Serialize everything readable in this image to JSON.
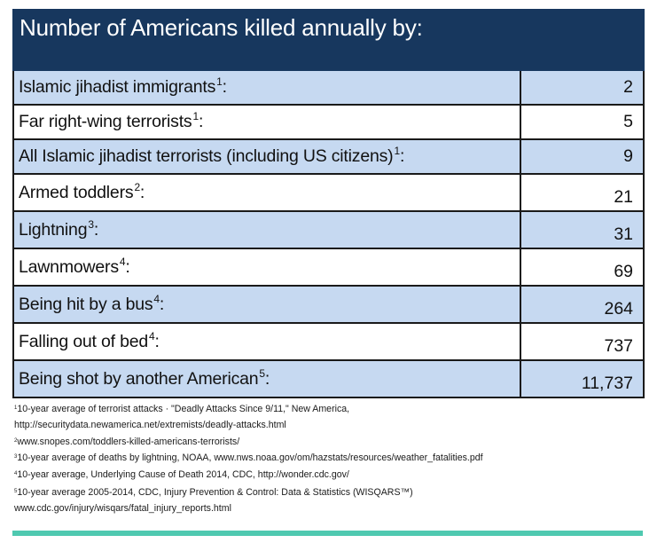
{
  "table": {
    "title": "Number of Americans killed annually by:",
    "rows": [
      {
        "label": "Islamic jihadist immigrants",
        "note": "1",
        "suffix": ":",
        "value": "2"
      },
      {
        "label": "Far right-wing terrorists",
        "note": "1",
        "suffix": ":",
        "value": "5"
      },
      {
        "label": "All Islamic jihadist terrorists (including US citizens)",
        "note": "1",
        "suffix": ":",
        "value": "9"
      },
      {
        "label": "Armed toddlers",
        "note": "2",
        "suffix": ":",
        "value": "21"
      },
      {
        "label": "Lightning",
        "note": "3",
        "suffix": ":",
        "value": "31"
      },
      {
        "label": "Lawnmowers",
        "note": "4",
        "suffix": ":",
        "value": "69"
      },
      {
        "label": "Being hit by a bus",
        "note": "4",
        "suffix": ":",
        "value": "264"
      },
      {
        "label": "Falling out of bed",
        "note": "4",
        "suffix": ":",
        "value": "737"
      },
      {
        "label": "Being shot by another American",
        "note": "5",
        "suffix": ":",
        "value": "11,737"
      }
    ],
    "colors": {
      "header_bg": "#17375e",
      "header_text": "#ffffff",
      "shaded_row": "#c6d9f1",
      "plain_row": "#ffffff",
      "accent_bar": "#4fc9b0"
    }
  },
  "footnotes": [
    {
      "mark": "1",
      "text": "10-year average of terrorist attacks · \"Deadly Attacks Since 9/11,\" New America,"
    },
    {
      "mark": "",
      "text": "http://securitydata.newamerica.net/extremists/deadly-attacks.html"
    },
    {
      "mark": "2",
      "text": "www.snopes.com/toddlers-killed-americans-terrorists/"
    },
    {
      "mark": "3",
      "text": "10-year average of deaths by lightning, NOAA, www.nws.noaa.gov/om/hazstats/resources/weather_fatalities.pdf"
    },
    {
      "mark": "4",
      "text": "10-year average, Underlying Cause of Death 2014, CDC, http://wonder.cdc.gov/"
    },
    {
      "mark": "5",
      "text": "10-year average 2005-2014, CDC, Injury Prevention & Control: Data & Statistics (WISQARS™)"
    },
    {
      "mark": "",
      "text": "www.cdc.gov/injury/wisqars/fatal_injury_reports.html"
    }
  ]
}
